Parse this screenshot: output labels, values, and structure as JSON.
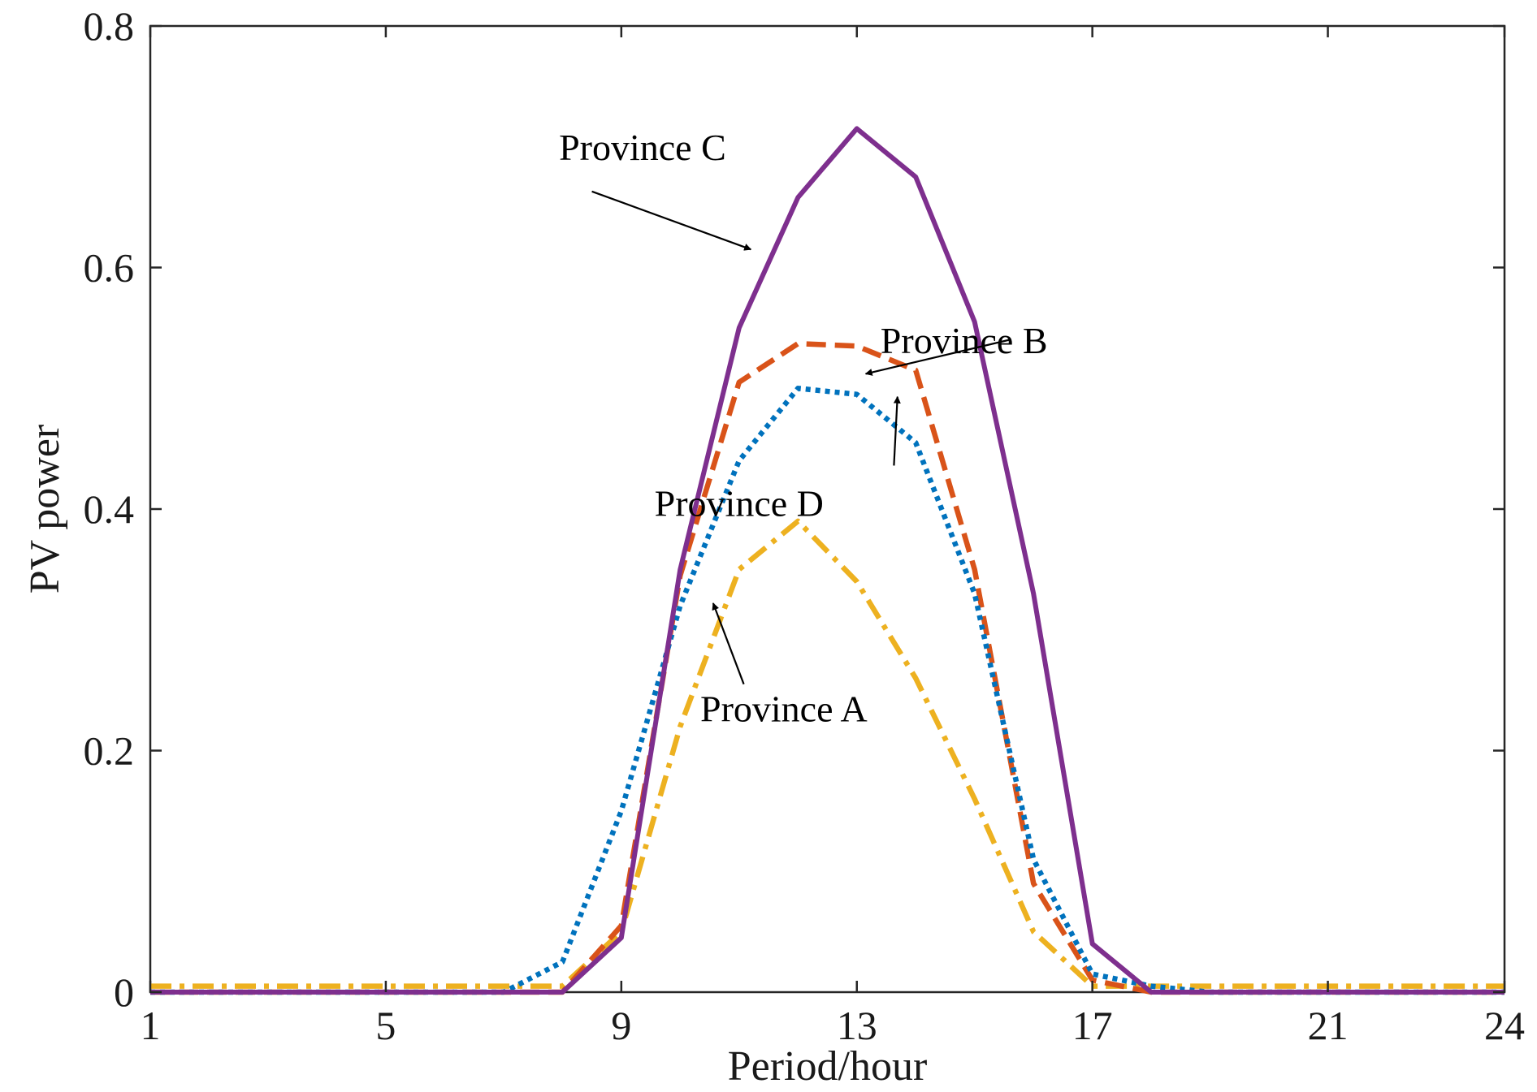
{
  "chart_data": {
    "type": "line",
    "xlabel": "Period/hour",
    "ylabel": "PV power",
    "xlim": [
      1,
      24
    ],
    "ylim": [
      0,
      0.8
    ],
    "x_ticks": [
      1,
      5,
      9,
      13,
      17,
      21,
      24
    ],
    "x_tick_labels": [
      "1",
      "5",
      "9",
      "13",
      "17",
      "21",
      "24"
    ],
    "y_ticks": [
      0,
      0.2,
      0.4,
      0.6,
      0.8
    ],
    "y_tick_labels": [
      "0",
      "0.2",
      "0.4",
      "0.6",
      "0.8"
    ],
    "grid": false,
    "box": true,
    "x": [
      1,
      2,
      3,
      4,
      5,
      6,
      7,
      8,
      9,
      10,
      11,
      12,
      13,
      14,
      15,
      16,
      17,
      18,
      19,
      20,
      21,
      22,
      23,
      24
    ],
    "series": [
      {
        "key": "province_a",
        "name": "Province A",
        "color": "#EDB120",
        "line_style": "dashdot",
        "values": [
          0.005,
          0.005,
          0.005,
          0.005,
          0.005,
          0.005,
          0.005,
          0.005,
          0.05,
          0.22,
          0.35,
          0.39,
          0.34,
          0.26,
          0.16,
          0.05,
          0.005,
          0.005,
          0.005,
          0.005,
          0.005,
          0.005,
          0.005,
          0.005
        ]
      },
      {
        "key": "province_b",
        "name": "Province B",
        "color": "#D95319",
        "line_style": "dashed",
        "values": [
          0,
          0,
          0,
          0,
          0,
          0,
          0,
          0,
          0.055,
          0.345,
          0.505,
          0.537,
          0.535,
          0.515,
          0.35,
          0.09,
          0.01,
          0,
          0,
          0,
          0,
          0,
          0,
          0
        ]
      },
      {
        "key": "province_c",
        "name": "Province C",
        "color": "#7E2F8E",
        "line_style": "solid",
        "values": [
          0,
          0,
          0,
          0,
          0,
          0,
          0,
          0,
          0.045,
          0.35,
          0.55,
          0.658,
          0.715,
          0.675,
          0.555,
          0.33,
          0.04,
          0,
          0,
          0,
          0,
          0,
          0,
          0
        ]
      },
      {
        "key": "province_d",
        "name": "Province D",
        "color": "#0072BD",
        "line_style": "dotted",
        "values": [
          0,
          0,
          0,
          0,
          0,
          0,
          0,
          0.025,
          0.15,
          0.32,
          0.44,
          0.5,
          0.495,
          0.455,
          0.33,
          0.11,
          0.015,
          0.005,
          0,
          0,
          0,
          0,
          0,
          0
        ]
      }
    ],
    "annotations": [
      {
        "series": "province_c",
        "text": "Province C",
        "text_at": [
          9.36,
          0.7
        ],
        "arrow_from": [
          8.5,
          0.663
        ],
        "arrow_to": [
          11.2,
          0.615
        ]
      },
      {
        "series": "province_b",
        "text": "Province B",
        "text_at": [
          14.82,
          0.54
        ],
        "arrow_from": [
          15.58,
          0.54
        ],
        "arrow_to": [
          13.15,
          0.512
        ]
      },
      {
        "series": "province_d",
        "text": "Province D",
        "text_at": [
          11.0,
          0.405
        ],
        "arrow_from": [
          13.63,
          0.436
        ],
        "arrow_to": [
          13.69,
          0.493
        ]
      },
      {
        "series": "province_a",
        "text": "Province A",
        "text_at": [
          11.76,
          0.235
        ],
        "arrow_from": [
          11.08,
          0.255
        ],
        "arrow_to": [
          10.56,
          0.322
        ]
      }
    ]
  }
}
